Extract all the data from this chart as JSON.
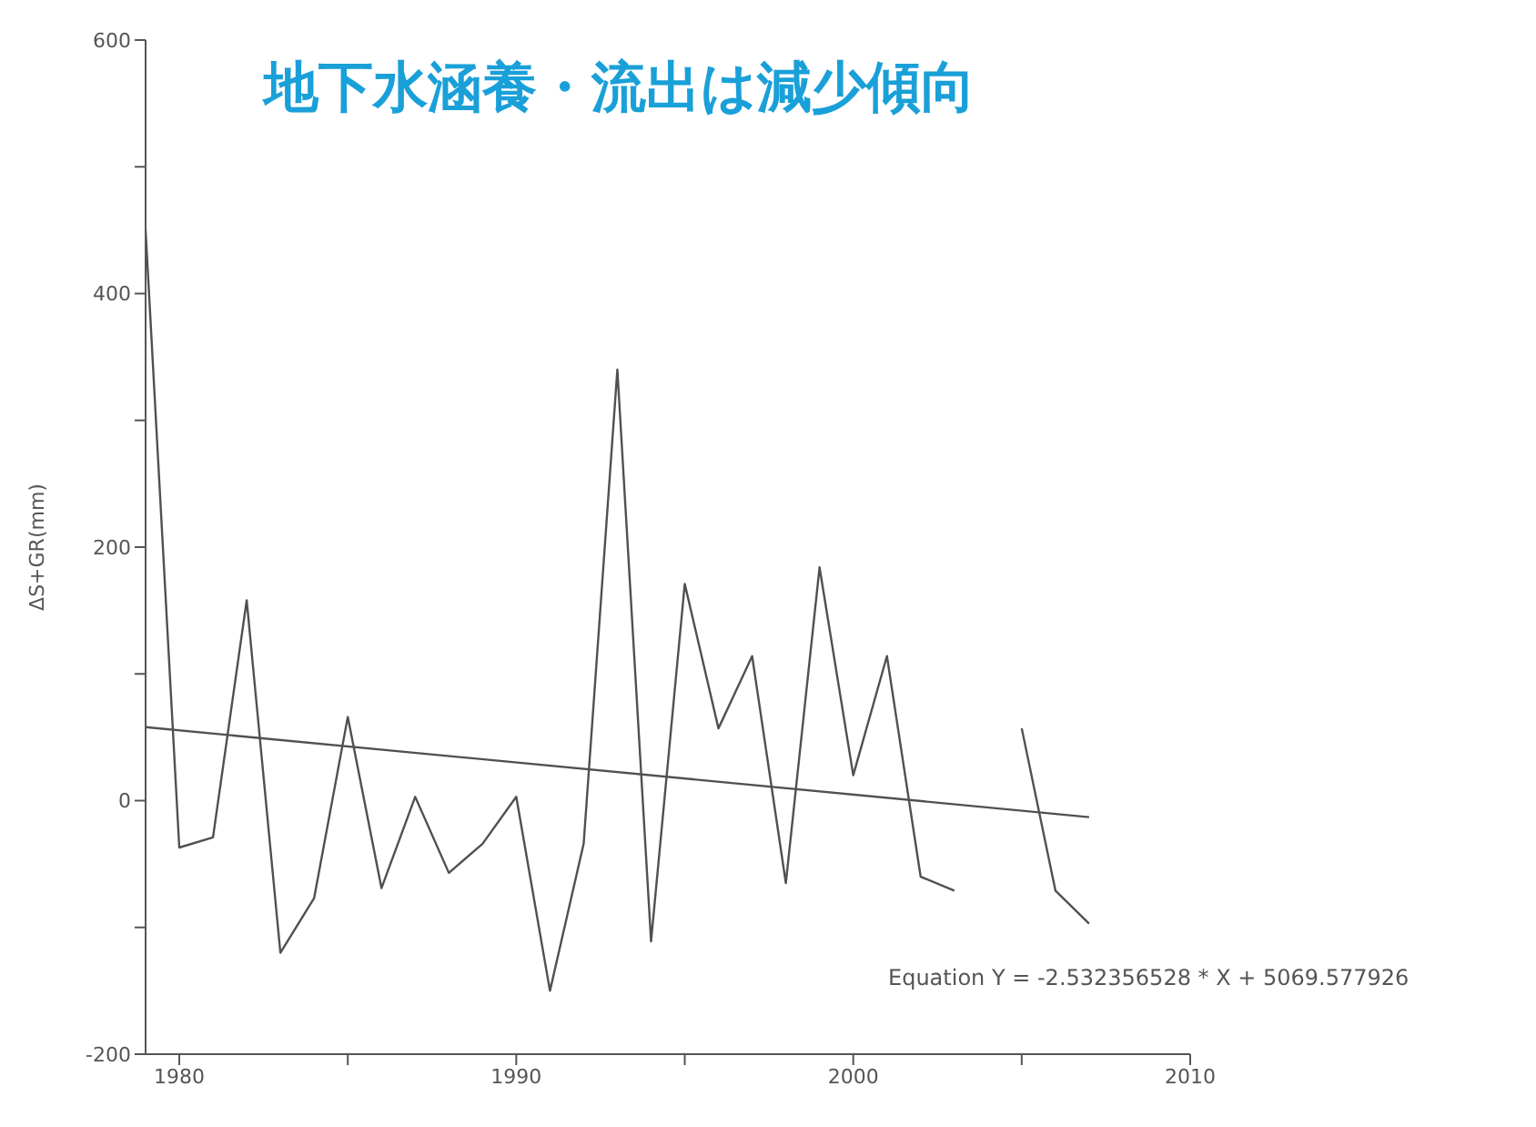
{
  "chart_data": {
    "type": "line",
    "title": "地下水涵養・流出は減少傾向",
    "ylabel": "ΔS+GR(mm)",
    "annotations": [
      "Equation Y = -2.532356528 * X + 5069.577926"
    ],
    "xlim": [
      1979,
      2010
    ],
    "xticks": [
      1980,
      {
        "value": 1985,
        "label": null
      },
      1990,
      {
        "value": 1995,
        "label": null
      },
      2000,
      {
        "value": 2005,
        "label": null
      },
      2010
    ],
    "ylim": [
      -200,
      600
    ],
    "yticks": [
      -200,
      {
        "value": -100,
        "label": null
      },
      0,
      {
        "value": 100,
        "label": null
      },
      200,
      {
        "value": 300,
        "label": null
      },
      400,
      {
        "value": 500,
        "label": null
      },
      600
    ],
    "grid": false,
    "marker": "none",
    "line_style": "solid",
    "series": [
      {
        "color": "#505050",
        "x": [
          1979,
          1980,
          1981,
          1982,
          1983,
          1984,
          1985,
          1986,
          1987,
          1988,
          1989,
          1990,
          1991,
          1992,
          1993,
          1994,
          1995,
          1996,
          1997,
          1998,
          1999,
          2000,
          2001,
          2002,
          2003,
          2004,
          2005,
          2006,
          2007
        ],
        "values": [
          450,
          -37,
          -29,
          158,
          -120,
          -77,
          66,
          -69,
          3,
          -57,
          -34,
          3,
          -150,
          -34,
          340,
          -111,
          171,
          57,
          114,
          -65,
          184,
          20,
          114,
          -60,
          -71,
          null,
          57,
          -71,
          -97
        ]
      },
      {
        "color": "#505050",
        "x": [
          1979,
          2007
        ],
        "values": [
          58,
          -13
        ]
      }
    ]
  }
}
